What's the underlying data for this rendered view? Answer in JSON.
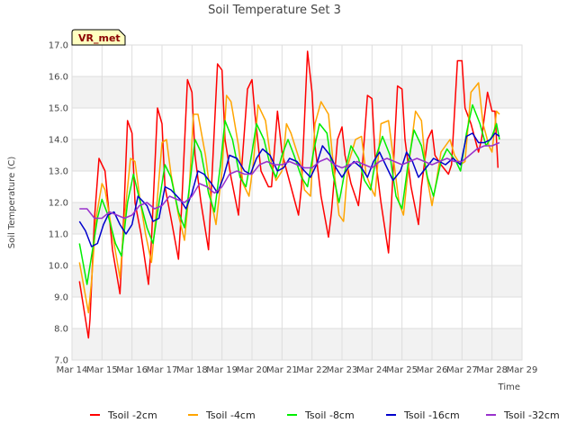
{
  "chart_data": {
    "type": "line",
    "title": "Soil Temperature Set 3",
    "xlabel": "Time",
    "ylabel": "Soil Temperature (C)",
    "badge": "VR_met",
    "ylim": [
      7.0,
      17.0
    ],
    "yticks": [
      "7.0",
      "8.0",
      "9.0",
      "10.0",
      "11.0",
      "12.0",
      "13.0",
      "14.0",
      "15.0",
      "16.0",
      "17.0"
    ],
    "xlim": [
      14,
      29
    ],
    "xticks": [
      {
        "label": "Mar 14",
        "day": 14
      },
      {
        "label": "Mar 15",
        "day": 15
      },
      {
        "label": "Mar 16",
        "day": 16
      },
      {
        "label": "Mar 17",
        "day": 17
      },
      {
        "label": "Mar 18",
        "day": 18
      },
      {
        "label": "Mar 19",
        "day": 19
      },
      {
        "label": "Mar 20",
        "day": 20
      },
      {
        "label": "Mar 21",
        "day": 21
      },
      {
        "label": "Mar 22",
        "day": 22
      },
      {
        "label": "Mar 23",
        "day": 23
      },
      {
        "label": "Mar 24",
        "day": 24
      },
      {
        "label": "Mar 25",
        "day": 25
      },
      {
        "label": "Mar 26",
        "day": 26
      },
      {
        "label": "Mar 27",
        "day": 27
      },
      {
        "label": "Mar 28",
        "day": 28
      },
      {
        "label": "Mar 29",
        "day": 29
      }
    ],
    "grid": true,
    "legend_position": "bottom",
    "series": [
      {
        "name": "Tsoil -2cm",
        "color": "#ff0000",
        "x": [
          14.25,
          14.55,
          14.6,
          14.75,
          14.9,
          15.1,
          15.35,
          15.6,
          15.7,
          15.85,
          16.0,
          16.1,
          16.3,
          16.55,
          16.65,
          16.85,
          17.0,
          17.1,
          17.3,
          17.55,
          17.65,
          17.85,
          18.0,
          18.1,
          18.3,
          18.55,
          18.65,
          18.85,
          19.0,
          19.1,
          19.3,
          19.55,
          19.65,
          19.85,
          20.0,
          20.1,
          20.3,
          20.55,
          20.65,
          20.85,
          21.0,
          21.1,
          21.3,
          21.55,
          21.65,
          21.85,
          22.0,
          22.1,
          22.3,
          22.55,
          22.65,
          22.85,
          23.0,
          23.1,
          23.3,
          23.55,
          23.65,
          23.85,
          24.0,
          24.1,
          24.3,
          24.55,
          24.65,
          24.85,
          25.0,
          25.1,
          25.3,
          25.55,
          25.65,
          25.85,
          26.0,
          26.1,
          26.3,
          26.55,
          26.65,
          26.85,
          27.0,
          27.1,
          27.3,
          27.55,
          27.65,
          27.85,
          28.0,
          28.1,
          28.2
        ],
        "y": [
          9.5,
          7.7,
          8.3,
          11.5,
          13.4,
          13.0,
          10.5,
          9.1,
          11.0,
          14.6,
          14.2,
          12.0,
          11.0,
          9.4,
          10.8,
          15.0,
          14.5,
          12.5,
          11.5,
          10.2,
          11.8,
          15.9,
          15.5,
          13.5,
          12.0,
          10.5,
          12.5,
          16.4,
          16.2,
          14.0,
          12.8,
          11.6,
          13.0,
          15.6,
          15.9,
          14.8,
          13.0,
          12.5,
          12.5,
          14.9,
          13.6,
          13.2,
          12.5,
          11.6,
          12.5,
          16.8,
          15.5,
          13.8,
          12.2,
          10.9,
          11.7,
          14.0,
          14.4,
          13.5,
          12.6,
          11.9,
          12.8,
          15.4,
          15.3,
          13.5,
          12.0,
          10.4,
          12.0,
          15.7,
          15.6,
          14.0,
          12.5,
          11.3,
          12.5,
          14.0,
          14.3,
          13.5,
          13.2,
          12.9,
          13.2,
          16.5,
          16.5,
          15.0,
          14.5,
          13.6,
          14.0,
          15.5,
          14.9,
          14.9,
          13.1
        ]
      },
      {
        "name": "Tsoil -4cm",
        "color": "#ffa500",
        "x": [
          14.25,
          14.55,
          14.65,
          14.8,
          15.0,
          15.1,
          15.35,
          15.6,
          15.75,
          15.95,
          16.1,
          16.25,
          16.45,
          16.65,
          16.8,
          17.0,
          17.15,
          17.3,
          17.55,
          17.75,
          17.9,
          18.05,
          18.2,
          18.45,
          18.65,
          18.8,
          19.0,
          19.15,
          19.3,
          19.55,
          19.7,
          19.9,
          20.05,
          20.2,
          20.45,
          20.65,
          20.8,
          21.0,
          21.15,
          21.3,
          21.6,
          21.75,
          21.95,
          22.1,
          22.3,
          22.55,
          22.7,
          22.9,
          23.05,
          23.2,
          23.45,
          23.65,
          23.8,
          24.0,
          24.1,
          24.3,
          24.55,
          24.7,
          24.9,
          25.05,
          25.2,
          25.45,
          25.65,
          25.8,
          26.0,
          26.15,
          26.3,
          26.6,
          26.75,
          26.95,
          27.1,
          27.3,
          27.55,
          27.7,
          27.9,
          28.0,
          28.15,
          28.25
        ],
        "y": [
          10.1,
          8.5,
          9.5,
          11.5,
          12.6,
          12.4,
          11.0,
          9.6,
          11.5,
          13.4,
          13.3,
          12.2,
          11.0,
          10.1,
          11.6,
          13.9,
          14.0,
          12.9,
          11.6,
          10.8,
          12.3,
          14.8,
          14.8,
          13.5,
          12.0,
          11.3,
          13.0,
          15.4,
          15.2,
          13.8,
          12.6,
          12.2,
          13.3,
          15.1,
          14.6,
          13.2,
          12.7,
          13.0,
          14.5,
          14.2,
          13.3,
          12.4,
          12.2,
          14.5,
          15.2,
          14.8,
          13.3,
          11.6,
          11.4,
          13.2,
          14.0,
          14.1,
          12.9,
          12.4,
          12.2,
          14.5,
          14.6,
          13.5,
          12.0,
          11.6,
          13.0,
          14.9,
          14.6,
          13.0,
          11.9,
          12.7,
          13.6,
          14.0,
          13.5,
          13.2,
          13.3,
          15.5,
          15.8,
          14.5,
          13.8,
          13.6,
          14.9,
          14.8
        ]
      },
      {
        "name": "Tsoil -8cm",
        "color": "#00ee00",
        "x": [
          14.25,
          14.5,
          14.65,
          14.85,
          15.0,
          15.2,
          15.45,
          15.65,
          15.85,
          16.05,
          16.2,
          16.5,
          16.7,
          16.9,
          17.1,
          17.3,
          17.55,
          17.75,
          17.95,
          18.1,
          18.3,
          18.55,
          18.75,
          18.95,
          19.1,
          19.35,
          19.6,
          19.8,
          20.0,
          20.15,
          20.4,
          20.6,
          20.8,
          21.0,
          21.2,
          21.4,
          21.65,
          21.85,
          22.05,
          22.25,
          22.5,
          22.7,
          22.9,
          23.1,
          23.3,
          23.55,
          23.75,
          23.95,
          24.15,
          24.35,
          24.6,
          24.8,
          25.0,
          25.2,
          25.4,
          25.65,
          25.85,
          26.05,
          26.3,
          26.5,
          26.8,
          26.95,
          27.15,
          27.35,
          27.6,
          27.8,
          28.0,
          28.15,
          28.25
        ],
        "y": [
          10.7,
          9.4,
          10.3,
          11.5,
          12.1,
          11.6,
          10.7,
          10.3,
          12.0,
          12.9,
          12.3,
          11.2,
          10.7,
          12.0,
          13.2,
          12.8,
          11.7,
          11.2,
          12.8,
          14.0,
          13.6,
          12.3,
          11.7,
          13.2,
          14.6,
          14.0,
          12.8,
          12.5,
          13.6,
          14.5,
          14.0,
          13.2,
          12.8,
          13.5,
          14.0,
          13.5,
          12.8,
          12.5,
          13.6,
          14.5,
          14.2,
          12.9,
          12.0,
          13.0,
          13.8,
          13.4,
          12.7,
          12.4,
          13.5,
          14.1,
          13.5,
          12.2,
          11.8,
          13.2,
          14.3,
          13.8,
          12.8,
          12.2,
          13.3,
          13.7,
          13.3,
          13.0,
          14.2,
          15.1,
          14.5,
          13.8,
          14.1,
          14.5,
          14.0
        ]
      },
      {
        "name": "Tsoil -16cm",
        "color": "#0000cc",
        "x": [
          14.25,
          14.45,
          14.65,
          14.85,
          15.05,
          15.2,
          15.4,
          15.6,
          15.8,
          16.0,
          16.2,
          16.5,
          16.7,
          16.9,
          17.1,
          17.3,
          17.6,
          17.8,
          18.0,
          18.2,
          18.4,
          18.65,
          18.85,
          19.05,
          19.25,
          19.5,
          19.75,
          19.95,
          20.15,
          20.35,
          20.6,
          20.85,
          21.05,
          21.25,
          21.5,
          21.75,
          21.95,
          22.15,
          22.35,
          22.6,
          22.8,
          23.0,
          23.2,
          23.4,
          23.65,
          23.85,
          24.05,
          24.25,
          24.5,
          24.7,
          24.95,
          25.15,
          25.35,
          25.55,
          25.8,
          26.05,
          26.25,
          26.45,
          26.7,
          26.95,
          27.15,
          27.35,
          27.55,
          27.75,
          27.95,
          28.1,
          28.25
        ],
        "y": [
          11.4,
          11.1,
          10.6,
          10.7,
          11.3,
          11.6,
          11.7,
          11.3,
          11.0,
          11.3,
          12.2,
          11.9,
          11.4,
          11.5,
          12.5,
          12.4,
          12.1,
          11.8,
          12.3,
          13.0,
          12.9,
          12.6,
          12.3,
          12.8,
          13.5,
          13.4,
          13.0,
          12.9,
          13.4,
          13.7,
          13.5,
          13.0,
          13.1,
          13.4,
          13.3,
          13.0,
          12.8,
          13.2,
          13.8,
          13.5,
          13.1,
          12.8,
          13.1,
          13.3,
          13.1,
          12.8,
          13.3,
          13.6,
          13.1,
          12.7,
          13.0,
          13.6,
          13.3,
          12.8,
          13.1,
          13.4,
          13.3,
          13.2,
          13.4,
          13.2,
          14.1,
          14.2,
          13.9,
          13.9,
          14.0,
          14.2,
          14.1
        ]
      },
      {
        "name": "Tsoil -32cm",
        "color": "#9932cc",
        "x": [
          14.25,
          14.5,
          14.75,
          15.0,
          15.25,
          15.5,
          15.75,
          16.0,
          16.25,
          16.5,
          16.75,
          17.0,
          17.25,
          17.5,
          17.75,
          18.0,
          18.25,
          18.5,
          18.75,
          19.0,
          19.25,
          19.5,
          19.75,
          20.0,
          20.25,
          20.5,
          20.75,
          21.0,
          21.25,
          21.5,
          21.75,
          22.0,
          22.25,
          22.5,
          22.75,
          23.0,
          23.25,
          23.5,
          23.75,
          24.0,
          24.25,
          24.5,
          24.75,
          25.0,
          25.25,
          25.5,
          25.75,
          26.0,
          26.25,
          26.5,
          26.75,
          27.0,
          27.25,
          27.5,
          27.75,
          28.0,
          28.25
        ],
        "y": [
          11.8,
          11.8,
          11.5,
          11.5,
          11.7,
          11.6,
          11.5,
          11.6,
          11.9,
          12.0,
          11.8,
          11.9,
          12.2,
          12.1,
          12.0,
          12.2,
          12.6,
          12.5,
          12.3,
          12.5,
          12.9,
          13.0,
          12.9,
          12.9,
          13.2,
          13.3,
          13.2,
          13.2,
          13.3,
          13.2,
          13.1,
          13.1,
          13.3,
          13.4,
          13.2,
          13.1,
          13.2,
          13.3,
          13.2,
          13.1,
          13.3,
          13.4,
          13.3,
          13.2,
          13.3,
          13.4,
          13.3,
          13.2,
          13.3,
          13.4,
          13.3,
          13.3,
          13.5,
          13.7,
          13.8,
          13.8,
          13.9
        ]
      }
    ]
  }
}
